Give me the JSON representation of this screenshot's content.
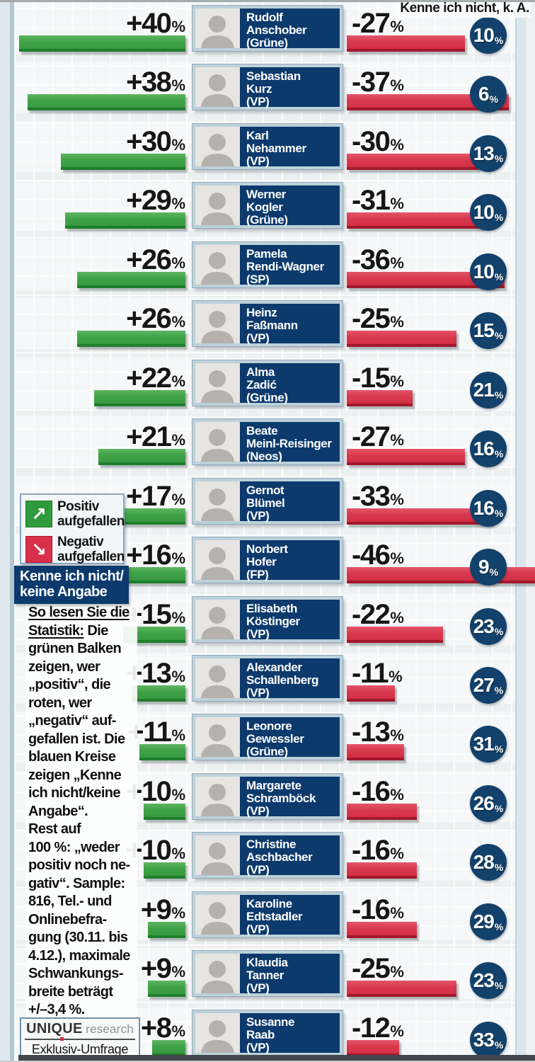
{
  "header": {
    "title": "Kenne ich nicht, k. A."
  },
  "labels": {
    "percent": "%",
    "plus": "+",
    "minus": "-"
  },
  "legend": {
    "positive": "Positiv\naufgefallen",
    "negative": "Negativ\naufgefallen",
    "unknown": "Kenne ich nicht/\nkeine Angabe",
    "up_arrow_glyph": "↗",
    "down_arrow_glyph": "↘"
  },
  "explainer": {
    "intro": "So lesen Sie die\nStatistik:",
    "body": " Die\ngrünen Balken\nzeigen, wer\n„positiv“, die\nroten, wer\n„negativ“ auf-\ngefallen ist. Die\nblauen Kreise\nzeigen „Kenne\nich nicht/keine\nAngabe“.\nRest auf\n100 %: „weder\npositiv noch ne-\ngativ“. Sample:\n816, Tel.- und\nOnlinebefra-\ngung (30.11. bis\n4.12.), maximale\nSchwankungs-\nbreite beträgt\n+/–3,4 %."
  },
  "source": {
    "brand_main": "UNIQUE",
    "brand_sub": "research",
    "tagline": "Exklusiv-Umfrage"
  },
  "colors": {
    "positive_bar": "#41a348",
    "negative_bar": "#d93a4e",
    "unknown_circle": "#12416b",
    "name_plate": "#0d3a6d",
    "legend_green": "#2e9a3c",
    "legend_red": "#d8304a"
  },
  "chart_data": {
    "type": "bar",
    "orientation": "diverging-horizontal",
    "title": "Kenne ich nicht, k. A.",
    "units": "%",
    "legend_entries": [
      "Positiv aufgefallen",
      "Negativ aufgefallen",
      "Kenne ich nicht/keine Angabe"
    ],
    "legend_position": "left-middle",
    "grid": true,
    "rows": [
      {
        "first": "Rudolf",
        "last": "Anschober",
        "party": "(Grüne)",
        "pos": 40,
        "neg": -27,
        "unknown": 10
      },
      {
        "first": "Sebastian",
        "last": "Kurz",
        "party": "(VP)",
        "pos": 38,
        "neg": -37,
        "unknown": 6
      },
      {
        "first": "Karl",
        "last": "Nehammer",
        "party": "(VP)",
        "pos": 30,
        "neg": -30,
        "unknown": 13
      },
      {
        "first": "Werner",
        "last": "Kogler",
        "party": "(Grüne)",
        "pos": 29,
        "neg": -31,
        "unknown": 10
      },
      {
        "first": "Pamela",
        "last": "Rendi-Wagner",
        "party": "(SP)",
        "pos": 26,
        "neg": -36,
        "unknown": 10
      },
      {
        "first": "Heinz",
        "last": "Faßmann",
        "party": "(VP)",
        "pos": 26,
        "neg": -25,
        "unknown": 15
      },
      {
        "first": "Alma",
        "last": "Zadić",
        "party": "(Grüne)",
        "pos": 22,
        "neg": -15,
        "unknown": 21
      },
      {
        "first": "Beate",
        "last": "Meinl-Reisinger",
        "party": "(Neos)",
        "pos": 21,
        "neg": -27,
        "unknown": 16
      },
      {
        "first": "Gernot",
        "last": "Blümel",
        "party": "(VP)",
        "pos": 17,
        "neg": -33,
        "unknown": 16
      },
      {
        "first": "Norbert",
        "last": "Hofer",
        "party": "(FP)",
        "pos": 16,
        "neg": -46,
        "unknown": 9
      },
      {
        "first": "Elisabeth",
        "last": "Köstinger",
        "party": "(VP)",
        "pos": 15,
        "neg": -22,
        "unknown": 23
      },
      {
        "first": "Alexander",
        "last": "Schallenberg",
        "party": "(VP)",
        "pos": 13,
        "neg": -11,
        "unknown": 27
      },
      {
        "first": "Leonore",
        "last": "Gewessler",
        "party": "(Grüne)",
        "pos": 11,
        "neg": -13,
        "unknown": 31
      },
      {
        "first": "Margarete",
        "last": "Schramböck",
        "party": "(VP)",
        "pos": 10,
        "neg": -16,
        "unknown": 26
      },
      {
        "first": "Christine",
        "last": "Aschbacher",
        "party": "(VP)",
        "pos": 10,
        "neg": -16,
        "unknown": 28
      },
      {
        "first": "Karoline",
        "last": "Edtstadler",
        "party": "(VP)",
        "pos": 9,
        "neg": -16,
        "unknown": 29
      },
      {
        "first": "Klaudia",
        "last": "Tanner",
        "party": "(VP)",
        "pos": 9,
        "neg": -25,
        "unknown": 23
      },
      {
        "first": "Susanne",
        "last": "Raab",
        "party": "(VP)",
        "pos": 8,
        "neg": -12,
        "unknown": 33
      }
    ]
  }
}
